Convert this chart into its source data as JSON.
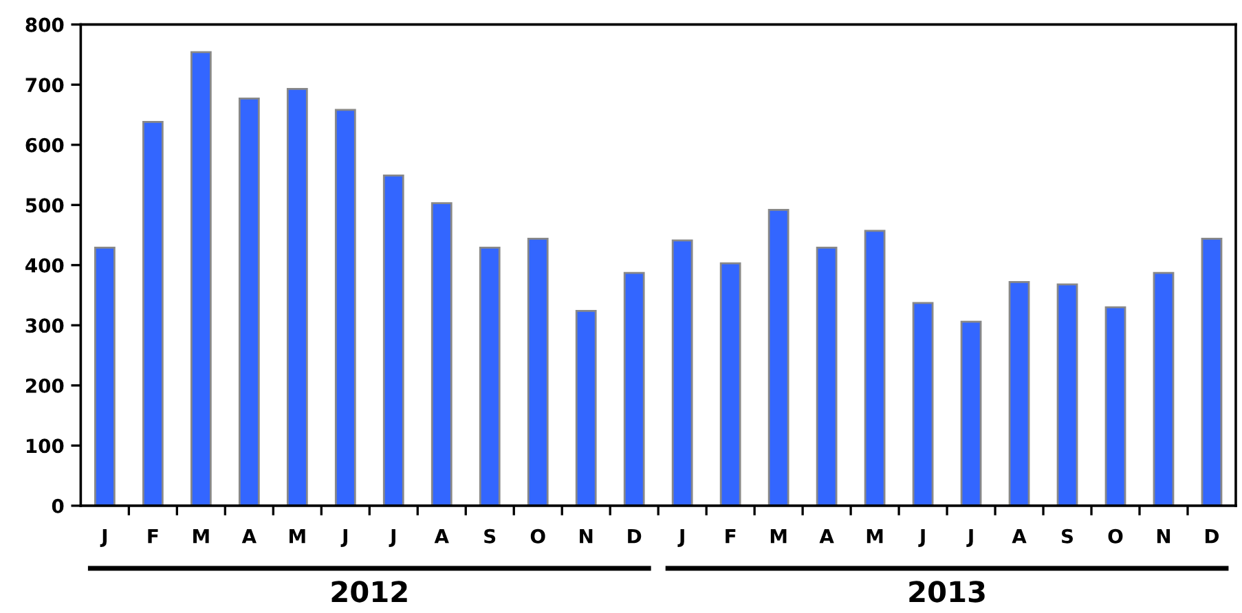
{
  "chart_data": {
    "type": "bar",
    "categories": [
      "J",
      "F",
      "M",
      "A",
      "M",
      "J",
      "J",
      "A",
      "S",
      "O",
      "N",
      "D",
      "J",
      "F",
      "M",
      "A",
      "M",
      "J",
      "J",
      "A",
      "S",
      "O",
      "N",
      "D"
    ],
    "values": [
      429,
      638,
      754,
      677,
      693,
      658,
      549,
      503,
      429,
      444,
      324,
      387,
      441,
      403,
      492,
      429,
      457,
      337,
      306,
      372,
      368,
      330,
      387,
      444
    ],
    "color": "#3366ff",
    "ylim": [
      0,
      800
    ],
    "yticks": [
      0,
      100,
      200,
      300,
      400,
      500,
      600,
      700,
      800
    ],
    "grid": false,
    "annotations": [
      "2012",
      "2013"
    ]
  }
}
